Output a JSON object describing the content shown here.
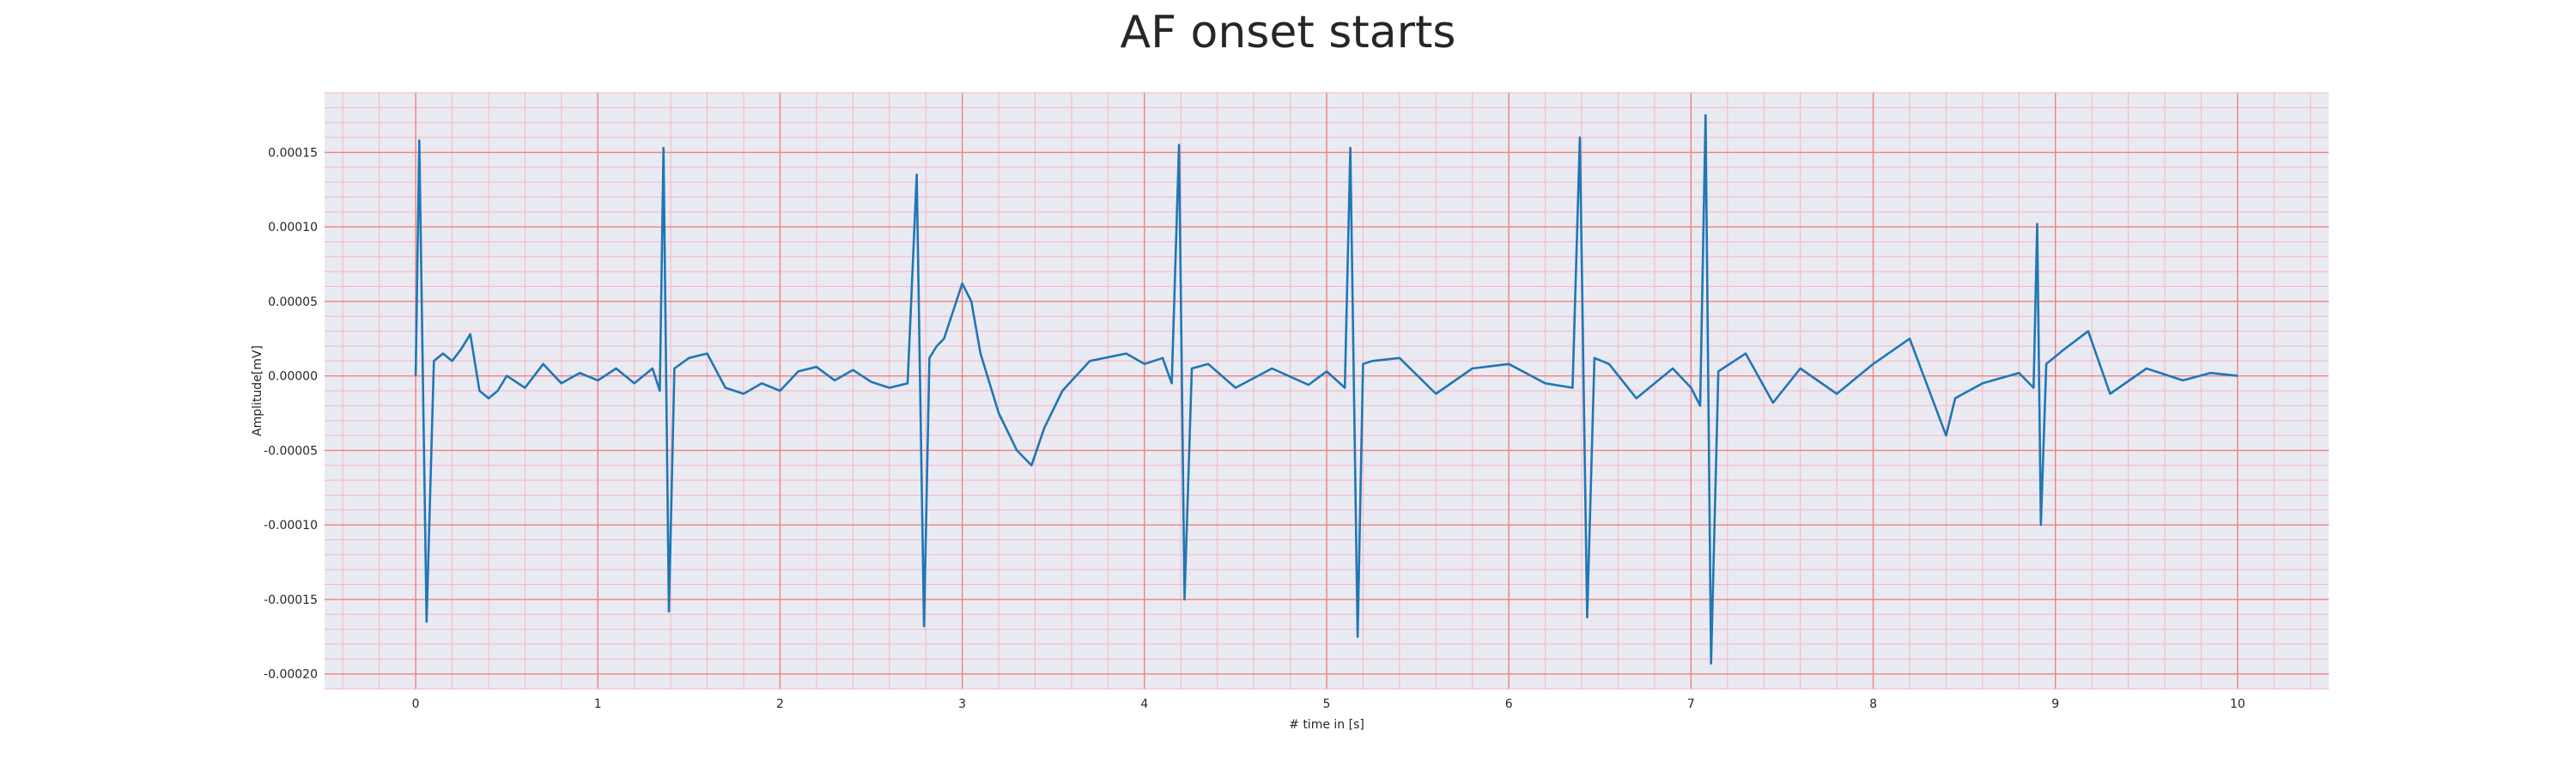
{
  "chart_data": {
    "type": "line",
    "title": "AF onset starts",
    "xlabel": "# time in [s]",
    "ylabel": "Amplitude[mV]",
    "xlim": [
      -0.5,
      10.5
    ],
    "ylim": [
      -0.00021,
      0.00019
    ],
    "grid": true,
    "x_ticks": [
      0,
      1,
      2,
      3,
      4,
      5,
      6,
      7,
      8,
      9,
      10
    ],
    "x_tick_labels": [
      "0",
      "1",
      "2",
      "3",
      "4",
      "5",
      "6",
      "7",
      "8",
      "9",
      "10"
    ],
    "y_ticks": [
      0.00015,
      0.0001,
      5e-05,
      0,
      -5e-05,
      -0.0001,
      -0.00015,
      -0.0002
    ],
    "y_tick_labels": [
      "0.00015",
      "0.00010",
      "0.00005",
      "0.00000",
      "-0.00005",
      "-0.00010",
      "-0.00015",
      "-0.00020"
    ],
    "colors": {
      "line": "#1f77b4",
      "major_grid": "#f08080",
      "minor_grid": "#f4b6c2",
      "plot_bg": "#eaeaf2"
    },
    "series": [
      {
        "x": [
          0.0,
          0.02,
          0.06,
          0.1,
          0.15,
          0.2,
          0.25,
          0.3,
          0.35,
          0.4,
          0.45,
          0.5,
          0.6,
          0.7,
          0.8,
          0.9,
          1.0,
          1.1,
          1.2,
          1.3,
          1.34,
          1.36,
          1.39,
          1.42,
          1.5,
          1.6,
          1.7,
          1.8,
          1.9,
          2.0,
          2.1,
          2.2,
          2.3,
          2.4,
          2.5,
          2.6,
          2.7,
          2.75,
          2.79,
          2.82,
          2.86,
          2.9,
          3.0,
          3.05,
          3.1,
          3.2,
          3.3,
          3.38,
          3.45,
          3.55,
          3.7,
          3.9,
          4.0,
          4.1,
          4.15,
          4.19,
          4.22,
          4.26,
          4.35,
          4.5,
          4.7,
          4.9,
          5.0,
          5.1,
          5.13,
          5.17,
          5.2,
          5.25,
          5.4,
          5.6,
          5.8,
          6.0,
          6.2,
          6.35,
          6.39,
          6.43,
          6.47,
          6.55,
          6.7,
          6.9,
          7.0,
          7.05,
          7.08,
          7.11,
          7.15,
          7.3,
          7.45,
          7.6,
          7.8,
          8.0,
          8.2,
          8.4,
          8.45,
          8.6,
          8.8,
          8.88,
          8.9,
          8.92,
          8.95,
          9.05,
          9.18,
          9.3,
          9.5,
          9.7,
          9.85,
          10.0
        ],
        "y": [
          0.0,
          0.000158,
          -0.000165,
          1e-05,
          1.5e-05,
          1e-05,
          1.8e-05,
          2.8e-05,
          -1e-05,
          -1.5e-05,
          -1e-05,
          0.0,
          -8e-06,
          8e-06,
          -5e-06,
          2e-06,
          -3e-06,
          5e-06,
          -5e-06,
          5e-06,
          -1e-05,
          0.000153,
          -0.000158,
          5e-06,
          1.2e-05,
          1.5e-05,
          -8e-06,
          -1.2e-05,
          -5e-06,
          -1e-05,
          3e-06,
          6e-06,
          -3e-06,
          4e-06,
          -4e-06,
          -8e-06,
          -5e-06,
          0.000135,
          -0.000168,
          1.2e-05,
          2e-05,
          2.5e-05,
          6.2e-05,
          5e-05,
          1.5e-05,
          -2.5e-05,
          -5e-05,
          -6e-05,
          -3.5e-05,
          -1e-05,
          1e-05,
          1.5e-05,
          8e-06,
          1.2e-05,
          -5e-06,
          0.000155,
          -0.00015,
          5e-06,
          8e-06,
          -8e-06,
          5e-06,
          -6e-06,
          3e-06,
          -8e-06,
          0.000153,
          -0.000175,
          8e-06,
          1e-05,
          1.2e-05,
          -1.2e-05,
          5e-06,
          8e-06,
          -5e-06,
          -8e-06,
          0.00016,
          -0.000162,
          1.2e-05,
          8e-06,
          -1.5e-05,
          5e-06,
          -8e-06,
          -2e-05,
          0.000175,
          -0.000193,
          3e-06,
          1.5e-05,
          -1.8e-05,
          5e-06,
          -1.2e-05,
          8e-06,
          2.5e-05,
          -4e-05,
          -1.5e-05,
          -5e-06,
          2e-06,
          -8e-06,
          0.000102,
          -0.0001,
          8e-06,
          1.8e-05,
          3e-05,
          -1.2e-05,
          5e-06,
          -3e-06,
          2e-06,
          0.0
        ]
      }
    ]
  }
}
